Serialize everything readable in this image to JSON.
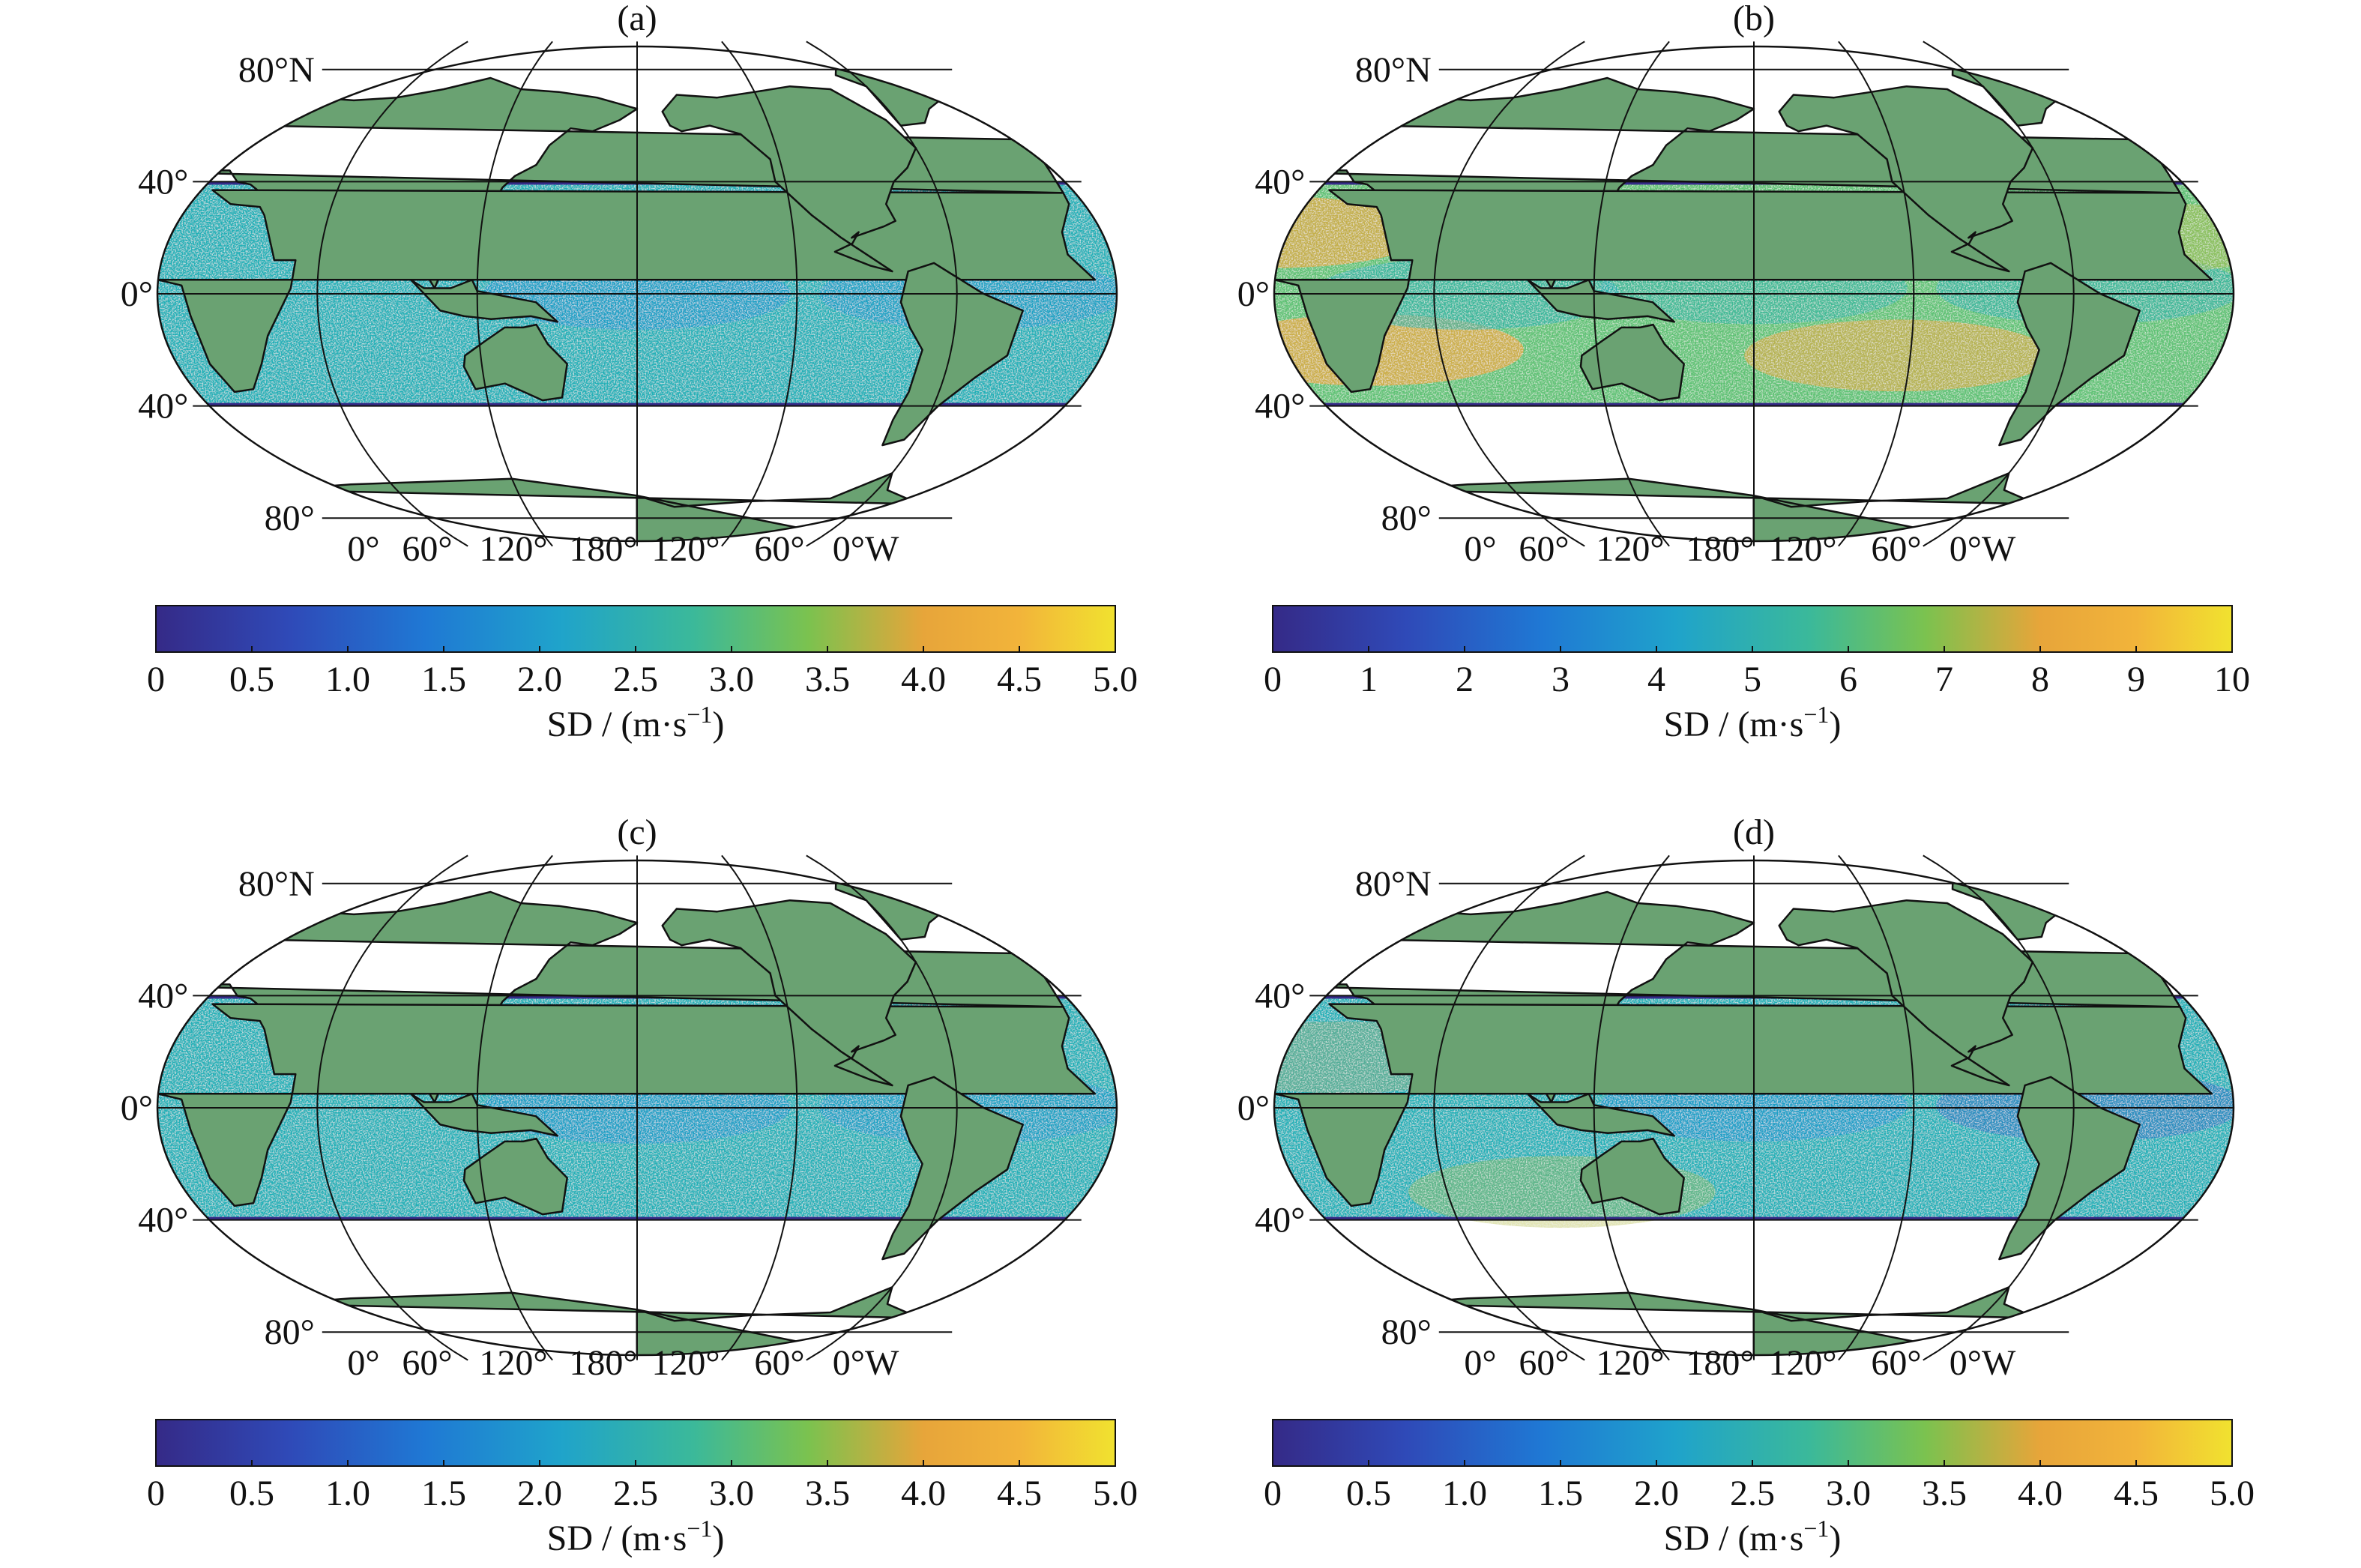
{
  "panels": [
    {
      "id": "a",
      "label": "(a)",
      "colorbar": {
        "ticks": [
          "0",
          "0.5",
          "1.0",
          "1.5",
          "2.0",
          "2.5",
          "3.0",
          "3.5",
          "4.0",
          "4.5",
          "5.0"
        ],
        "min": 0,
        "max": 5.0
      },
      "field": "low_eq"
    },
    {
      "id": "b",
      "label": "(b)",
      "colorbar": {
        "ticks": [
          "0",
          "1",
          "2",
          "3",
          "4",
          "5",
          "6",
          "7",
          "8",
          "9",
          "10"
        ],
        "min": 0,
        "max": 10
      },
      "field": "high_trades"
    },
    {
      "id": "c",
      "label": "(c)",
      "colorbar": {
        "ticks": [
          "0",
          "0.5",
          "1.0",
          "1.5",
          "2.0",
          "2.5",
          "3.0",
          "3.5",
          "4.0",
          "4.5",
          "5.0"
        ],
        "min": 0,
        "max": 5.0
      },
      "field": "low_eq"
    },
    {
      "id": "d",
      "label": "(d)",
      "colorbar": {
        "ticks": [
          "0",
          "0.5",
          "1.0",
          "1.5",
          "2.0",
          "2.5",
          "3.0",
          "3.5",
          "4.0",
          "4.5",
          "5.0"
        ],
        "min": 0,
        "max": 5.0
      },
      "field": "mid_bands"
    }
  ],
  "lat_labels": [
    "80°N",
    "40°",
    "0°",
    "40°",
    "80°"
  ],
  "lon_labels": [
    "0°",
    "60°",
    "120°",
    "180°",
    "120°",
    "60°",
    "0°W"
  ],
  "colorbar_title": "SD / (m·s",
  "colorbar_title_exp": "−1",
  "colorbar_title_end": ")",
  "colors": {
    "land": "#6aa272",
    "ocean_outside": "#ffffff",
    "colormap": [
      "#352a87",
      "#2b63c8",
      "#1a8fd6",
      "#22b1b8",
      "#5fc274",
      "#b6bd45",
      "#f0a83a",
      "#f2df2e"
    ]
  }
}
